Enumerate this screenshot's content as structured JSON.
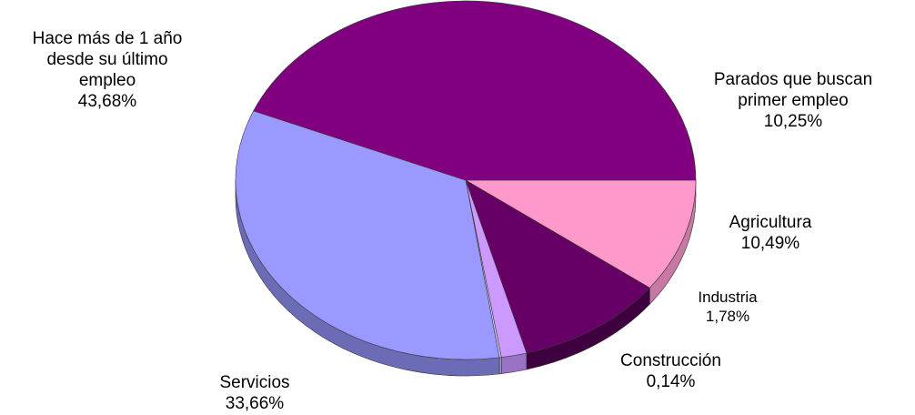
{
  "chart_data": {
    "type": "pie",
    "title": "",
    "slices": [
      {
        "label_lines": [
          "Parados que buscan",
          "primer empleo"
        ],
        "value_text": "10,25%",
        "value": 10.25,
        "color": "#ff99cc",
        "side": "#c878a2"
      },
      {
        "label_lines": [
          "Agricultura"
        ],
        "value_text": "10,49%",
        "value": 10.49,
        "color": "#660066",
        "side": "#3f003f"
      },
      {
        "label_lines": [
          "Industria"
        ],
        "value_text": "1,78%",
        "value": 1.78,
        "color": "#cc99ff",
        "side": "#9a72c4"
      },
      {
        "label_lines": [
          "Construcción"
        ],
        "value_text": "0,14%",
        "value": 0.14,
        "color": "#ccccff",
        "side": "#9c9cc8"
      },
      {
        "label_lines": [
          "Servicios"
        ],
        "value_text": "33,66%",
        "value": 33.66,
        "color": "#9999ff",
        "side": "#6b6bb6"
      },
      {
        "label_lines": [
          "Hace más de 1 año",
          "desde su último",
          "empleo"
        ],
        "value_text": "43,68%",
        "value": 43.68,
        "color": "#800080",
        "side": "#520052"
      }
    ]
  }
}
